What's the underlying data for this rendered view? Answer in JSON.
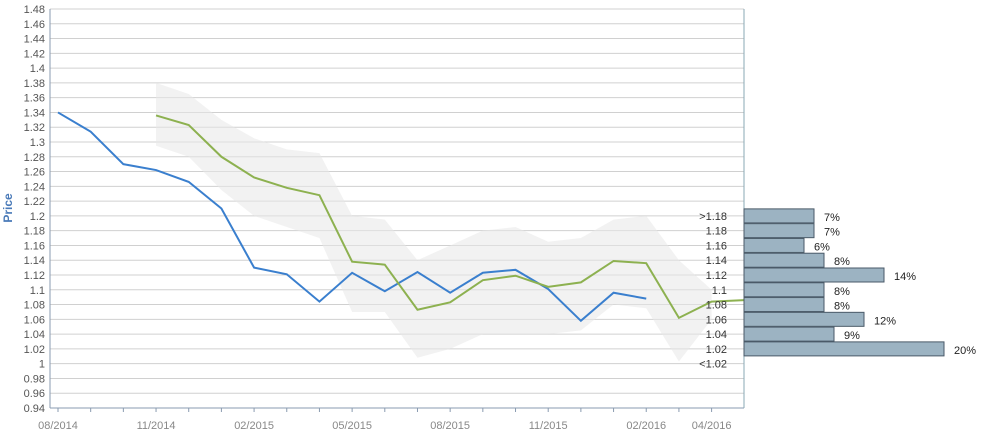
{
  "chart_data": {
    "type": "line",
    "ylabel": "Price",
    "ylim": [
      0.94,
      1.48
    ],
    "y_ticks": [
      "1.48",
      "1.46",
      "1.44",
      "1.42",
      "1.4",
      "1.38",
      "1.36",
      "1.34",
      "1.32",
      "1.3",
      "1.28",
      "1.26",
      "1.24",
      "1.22",
      "1.2",
      "1.18",
      "1.16",
      "1.14",
      "1.12",
      "1.1",
      "1.08",
      "1.06",
      "1.04",
      "1.02",
      "1",
      "0.98",
      "0.96",
      "0.94"
    ],
    "x_ticks": [
      "08/2014",
      "11/2014",
      "02/2015",
      "05/2015",
      "08/2015",
      "11/2015",
      "02/2016",
      "04/2016"
    ],
    "x_minor_ticks_count": 22,
    "series": [
      {
        "color": "#3a7fce",
        "x": [
          "2014-08",
          "2014-09",
          "2014-10",
          "2014-11",
          "2014-12",
          "2015-01",
          "2015-02",
          "2015-03",
          "2015-04",
          "2015-05",
          "2015-06",
          "2015-07",
          "2015-08",
          "2015-09",
          "2015-10",
          "2015-11",
          "2015-12",
          "2016-01",
          "2016-02"
        ],
        "values": [
          1.34,
          1.314,
          1.27,
          1.262,
          1.246,
          1.21,
          1.13,
          1.121,
          1.084,
          1.123,
          1.098,
          1.124,
          1.096,
          1.123,
          1.127,
          1.101,
          1.058,
          1.096,
          1.088
        ]
      },
      {
        "color": "#8db150",
        "x": [
          "2014-11",
          "2014-12",
          "2015-01",
          "2015-02",
          "2015-03",
          "2015-04",
          "2015-05",
          "2015-06",
          "2015-07",
          "2015-08",
          "2015-09",
          "2015-10",
          "2015-11",
          "2015-12",
          "2016-01",
          "2016-02",
          "2016-03",
          "2016-04",
          "2016-05"
        ],
        "values": [
          1.336,
          1.323,
          1.28,
          1.252,
          1.238,
          1.228,
          1.138,
          1.134,
          1.073,
          1.083,
          1.113,
          1.119,
          1.104,
          1.11,
          1.139,
          1.136,
          1.062,
          1.084,
          1.086
        ]
      }
    ],
    "range_band": {
      "color": "#e8e8e8",
      "x": [
        "2014-11",
        "2014-12",
        "2015-01",
        "2015-02",
        "2015-03",
        "2015-04",
        "2015-05",
        "2015-06",
        "2015-07",
        "2015-08",
        "2015-09",
        "2015-10",
        "2015-11",
        "2015-12",
        "2016-01",
        "2016-02",
        "2016-03",
        "2016-04"
      ],
      "upper": [
        1.38,
        1.365,
        1.33,
        1.305,
        1.29,
        1.285,
        1.2,
        1.195,
        1.14,
        1.16,
        1.18,
        1.185,
        1.165,
        1.17,
        1.195,
        1.2,
        1.14,
        1.1
      ],
      "lower": [
        1.295,
        1.28,
        1.235,
        1.2,
        1.185,
        1.17,
        1.07,
        1.07,
        1.008,
        1.02,
        1.04,
        1.04,
        1.04,
        1.045,
        1.08,
        1.075,
        1.003,
        1.06
      ]
    },
    "distribution": {
      "color": "#9cb3c2",
      "buckets": [
        {
          "label": ">1.18",
          "percent": 7
        },
        {
          "label": "1.18",
          "percent": 7
        },
        {
          "label": "1.16",
          "percent": 6
        },
        {
          "label": "1.14",
          "percent": 8
        },
        {
          "label": "1.12",
          "percent": 14
        },
        {
          "label": "1.1",
          "percent": 8
        },
        {
          "label": "1.08",
          "percent": 8
        },
        {
          "label": "1.06",
          "percent": 12
        },
        {
          "label": "1.04",
          "percent": 9
        },
        {
          "label": "1.02",
          "percent": 20
        },
        {
          "label": "<1.02",
          "percent": null
        }
      ]
    },
    "grid": true,
    "legend": "none"
  }
}
